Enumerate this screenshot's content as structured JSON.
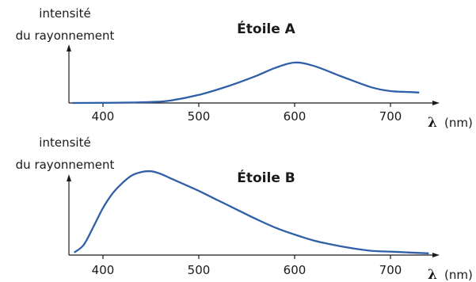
{
  "chart_data": [
    {
      "type": "line",
      "title": "Étoile A",
      "ylabel_line1": "intensité",
      "ylabel_line2": "du rayonnement",
      "xlabel_symbol": "λ",
      "xlabel_unit": "(nm)",
      "x_ticks": [
        400,
        500,
        600,
        700
      ],
      "xlim": [
        365,
        740
      ],
      "ylim": [
        0,
        1
      ],
      "grid": false,
      "series": [
        {
          "color": "#2e5fa8",
          "x": [
            368,
            400,
            430,
            450,
            470,
            500,
            530,
            560,
            580,
            600,
            620,
            650,
            680,
            700,
            720,
            730
          ],
          "y": [
            0,
            0.003,
            0.01,
            0.02,
            0.05,
            0.17,
            0.35,
            0.57,
            0.74,
            0.85,
            0.78,
            0.55,
            0.33,
            0.25,
            0.23,
            0.22
          ]
        }
      ]
    },
    {
      "type": "line",
      "title": "Étoile B",
      "ylabel_line1": "intensité",
      "ylabel_line2": "du rayonnement",
      "xlabel_symbol": "λ",
      "xlabel_unit": "(nm)",
      "x_ticks": [
        400,
        500,
        600,
        700
      ],
      "xlim": [
        365,
        740
      ],
      "ylim": [
        0,
        1
      ],
      "grid": false,
      "series": [
        {
          "color": "#2e5fa8",
          "x": [
            370,
            380,
            390,
            400,
            410,
            420,
            430,
            440,
            450,
            460,
            470,
            480,
            500,
            520,
            540,
            560,
            580,
            600,
            620,
            640,
            660,
            680,
            700,
            720,
            740
          ],
          "y": [
            0.03,
            0.12,
            0.33,
            0.55,
            0.72,
            0.84,
            0.93,
            0.97,
            0.98,
            0.95,
            0.9,
            0.85,
            0.75,
            0.64,
            0.53,
            0.42,
            0.32,
            0.24,
            0.17,
            0.12,
            0.08,
            0.05,
            0.04,
            0.03,
            0.02
          ]
        }
      ]
    }
  ]
}
